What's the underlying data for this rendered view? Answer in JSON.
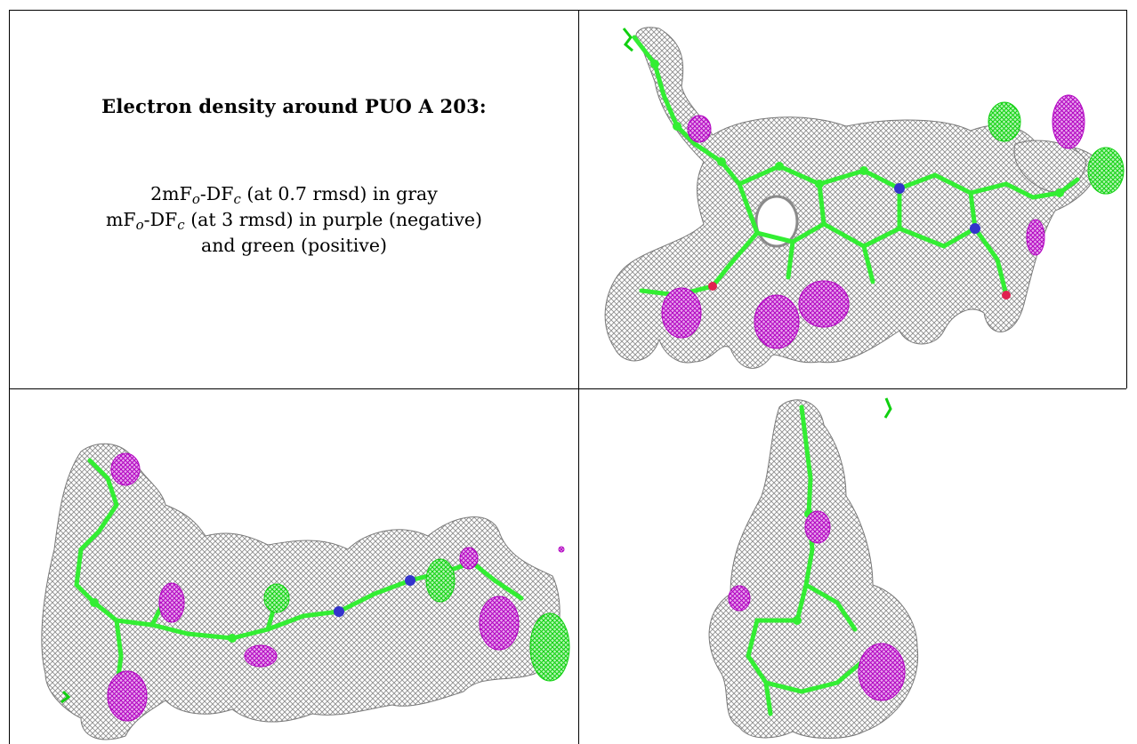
{
  "caption": {
    "title": "Electron density around PUO A 203:",
    "line1": {
      "prefix": "2mF",
      "sub1": "o",
      "mid": "-DF",
      "sub2": "c",
      "suffix": " (at 0.7 rmsd) in gray"
    },
    "line2": {
      "prefix": "mF",
      "sub1": "o",
      "mid": "-DF",
      "sub2": "c",
      "suffix": " (at 3 rmsd) in purple (negative)"
    },
    "line3": "and green (positive)"
  },
  "colors": {
    "map_2fofc": "#9a9a9a",
    "map_negative": "#c000c8",
    "map_positive": "#22e022",
    "atom_carbon": "#33ee33",
    "atom_nitrogen": "#3333cc",
    "atom_oxygen": "#e02050"
  },
  "panels": [
    {
      "view": "top-right"
    },
    {
      "view": "bottom-left"
    },
    {
      "view": "bottom-right"
    }
  ]
}
